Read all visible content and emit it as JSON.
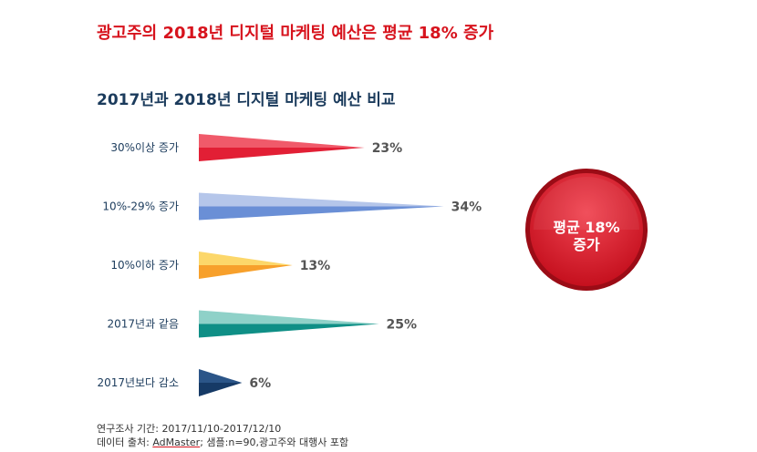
{
  "headline": "광고주의 2018년 디지털 마케팅 예산은 평균 18% 증가",
  "chart_data": {
    "type": "bar",
    "orientation": "horizontal",
    "title": "2017년과 2018년 디지털 마케팅 예산 비교",
    "categories": [
      "30%이상 증가",
      "10%-29% 증가",
      "10%이하 증가",
      "2017년과 같음",
      "2017년보다 감소"
    ],
    "values": [
      23,
      34,
      13,
      25,
      6
    ],
    "value_labels": [
      "23%",
      "34%",
      "13%",
      "25%",
      "6%"
    ],
    "colors": [
      {
        "top": "#f05a6a",
        "bottom": "#e21f35"
      },
      {
        "top": "#b5c6ea",
        "bottom": "#6a8fd6"
      },
      {
        "top": "#fcd76a",
        "bottom": "#f7a02b"
      },
      {
        "top": "#8fd1c8",
        "bottom": "#0f8f86"
      },
      {
        "top": "#2b5588",
        "bottom": "#163a66"
      }
    ],
    "unit": "%"
  },
  "badge": {
    "line1": "평균 18%",
    "line2": "증가",
    "color": "#e21f35"
  },
  "notes": {
    "period_label": "연구조사 기간:",
    "period": "2017/11/10-2017/12/10",
    "source_label": "데이터 출처:",
    "source_name": "AdMaster",
    "sample": "; 샘플:n=90,광고주와 대행사 포함"
  }
}
